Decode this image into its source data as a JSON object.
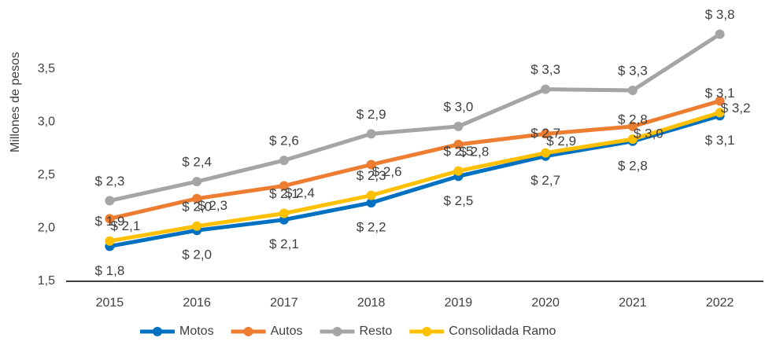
{
  "chart_data": {
    "type": "line",
    "y_label": "Millones de pesos",
    "categories": [
      "2015",
      "2016",
      "2017",
      "2018",
      "2019",
      "2020",
      "2021",
      "2022"
    ],
    "series": [
      {
        "name": "Motos",
        "color": "#0070c0",
        "values": [
          1.83,
          1.98,
          2.08,
          2.24,
          2.49,
          2.68,
          2.82,
          3.06
        ],
        "value_labels": [
          "$ 1,8",
          "$ 2,0",
          "$ 2,1",
          "$ 2,2",
          "$ 2,5",
          "$ 2,7",
          "$ 2,8",
          "$ 3,1"
        ]
      },
      {
        "name": "Autos",
        "color": "#ed7d31",
        "values": [
          2.09,
          2.28,
          2.4,
          2.6,
          2.79,
          2.89,
          2.96,
          3.2
        ],
        "value_labels": [
          "$ 2,1",
          "$ 2,3",
          "$ 2,4",
          "$ 2,6",
          "$ 2,8",
          "$ 2,9",
          "$ 3,0",
          "$ 3,2"
        ]
      },
      {
        "name": "Resto",
        "color": "#a5a5a5",
        "values": [
          2.26,
          2.44,
          2.64,
          2.89,
          2.96,
          3.31,
          3.3,
          3.83
        ],
        "value_labels": [
          "$ 2,3",
          "$ 2,4",
          "$ 2,6",
          "$ 2,9",
          "$ 3,0",
          "$ 3,3",
          "$ 3,3",
          "$ 3,8"
        ]
      },
      {
        "name": "Consolidada Ramo",
        "color": "#ffc000",
        "values": [
          1.88,
          2.02,
          2.14,
          2.31,
          2.54,
          2.71,
          2.84,
          3.09
        ],
        "value_labels": [
          "$ 1,9",
          "$ 2,0",
          "$ 2,1",
          "$ 2,3",
          "$ 2,5",
          "$ 2,7",
          "$ 2,8",
          "$ 3,1"
        ]
      }
    ],
    "ylim": [
      1.5,
      3.9
    ],
    "yticks": [
      {
        "value": 1.5,
        "label": "1,5"
      },
      {
        "value": 2.0,
        "label": "2,0"
      },
      {
        "value": 2.5,
        "label": "2,5"
      },
      {
        "value": 3.0,
        "label": "3,0"
      },
      {
        "value": 3.5,
        "label": "3,5"
      }
    ],
    "grid": false,
    "legend": "bottom"
  }
}
